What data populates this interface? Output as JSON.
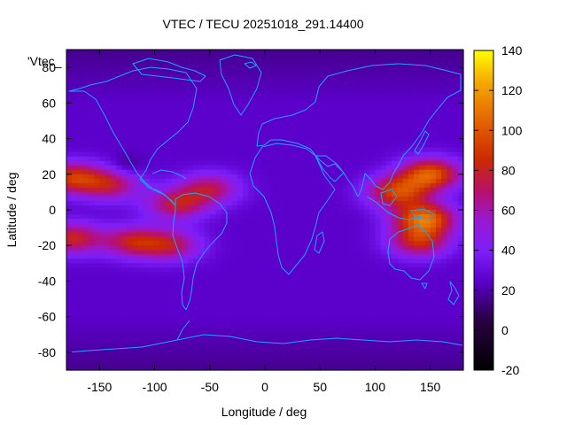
{
  "title": "VTEC / TECU 20251018_291.14400",
  "xlabel": "Longitude / deg",
  "ylabel": "Latitude / deg",
  "key_label": "'Vtec_",
  "x_ticks": [
    "-150",
    "-100",
    "-50",
    "0",
    "50",
    "100",
    "150"
  ],
  "y_ticks": [
    "80",
    "60",
    "40",
    "20",
    "0",
    "-20",
    "-40",
    "-60",
    "-80"
  ],
  "cb_ticks": [
    "140",
    "120",
    "100",
    "80",
    "60",
    "40",
    "20",
    "0",
    "-20"
  ],
  "colors": {
    "coast": "#1fa3ff",
    "low": "#000000",
    "high": "#ffff00"
  },
  "chart_data": {
    "type": "heatmap",
    "title": "VTEC / TECU 20251018_291.14400",
    "xlabel": "Longitude / deg",
    "ylabel": "Latitude / deg",
    "xlim": [
      -180,
      180
    ],
    "ylim": [
      -90,
      90
    ],
    "zlim": [
      -20,
      140
    ],
    "background_tec": 25,
    "tec_features": [
      {
        "name": "pacific-north-crest",
        "lon": -175,
        "lat": 18,
        "peak_tec": 85
      },
      {
        "name": "pacific-north-band",
        "lon": -140,
        "lat": 14,
        "peak_tec": 70
      },
      {
        "name": "pacific-south-crest",
        "lon": -175,
        "lat": -16,
        "peak_tec": 80
      },
      {
        "name": "pacific-south-band",
        "lon": -120,
        "lat": -18,
        "peak_tec": 75
      },
      {
        "name": "americas-south-band",
        "lon": -85,
        "lat": -20,
        "peak_tec": 70
      },
      {
        "name": "americas-north-band",
        "lon": -80,
        "lat": 3,
        "peak_tec": 75
      },
      {
        "name": "caribbean-patch",
        "lon": -50,
        "lat": 12,
        "peak_tec": 70
      },
      {
        "name": "asia-north-crest",
        "lon": 150,
        "lat": 20,
        "peak_tec": 100
      },
      {
        "name": "asia-bulge",
        "lon": 120,
        "lat": 10,
        "peak_tec": 90
      },
      {
        "name": "asia-south-crest",
        "lon": 145,
        "lat": -5,
        "peak_tec": 105
      },
      {
        "name": "australia-band",
        "lon": 140,
        "lat": -18,
        "peak_tec": 80
      }
    ]
  }
}
